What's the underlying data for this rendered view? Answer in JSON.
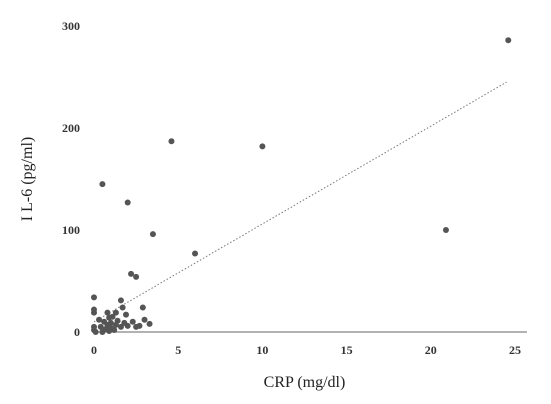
{
  "chart_data": {
    "type": "scatter",
    "title": "",
    "xlabel": "CRP (mg/dl)",
    "ylabel": "I L-6 (pg/ml)",
    "xlim": [
      0,
      25
    ],
    "ylim": [
      0,
      300
    ],
    "xticks": [
      0,
      5,
      10,
      15,
      20,
      25
    ],
    "yticks": [
      0,
      100,
      200,
      300
    ],
    "grid": false,
    "legend": "none",
    "marker_color": "#555555",
    "trendline": {
      "type": "linear",
      "style": "dotted",
      "x": [
        0,
        24.5
      ],
      "y": [
        10,
        245
      ]
    },
    "series": [
      {
        "points": [
          [
            0.0,
            34
          ],
          [
            0.0,
            22
          ],
          [
            0.0,
            19
          ],
          [
            0.0,
            5
          ],
          [
            0.0,
            2
          ],
          [
            0.1,
            0
          ],
          [
            0.3,
            12
          ],
          [
            0.4,
            5
          ],
          [
            0.5,
            0
          ],
          [
            0.5,
            145
          ],
          [
            0.6,
            10
          ],
          [
            0.7,
            3
          ],
          [
            0.8,
            19
          ],
          [
            0.8,
            7
          ],
          [
            0.9,
            14
          ],
          [
            0.9,
            1
          ],
          [
            1.0,
            9
          ],
          [
            1.0,
            4
          ],
          [
            1.1,
            15
          ],
          [
            1.2,
            2
          ],
          [
            1.3,
            19
          ],
          [
            1.3,
            7
          ],
          [
            1.4,
            11
          ],
          [
            1.6,
            31
          ],
          [
            1.6,
            5
          ],
          [
            1.7,
            24
          ],
          [
            1.8,
            9
          ],
          [
            1.9,
            17
          ],
          [
            2.0,
            127
          ],
          [
            2.0,
            6
          ],
          [
            2.2,
            57
          ],
          [
            2.3,
            10
          ],
          [
            2.5,
            54
          ],
          [
            2.5,
            5
          ],
          [
            2.7,
            6
          ],
          [
            2.9,
            24
          ],
          [
            3.0,
            12
          ],
          [
            3.3,
            8
          ],
          [
            3.5,
            96
          ],
          [
            4.6,
            187
          ],
          [
            6.0,
            77
          ],
          [
            10.0,
            182
          ],
          [
            20.9,
            100
          ],
          [
            24.6,
            286
          ]
        ]
      }
    ]
  }
}
